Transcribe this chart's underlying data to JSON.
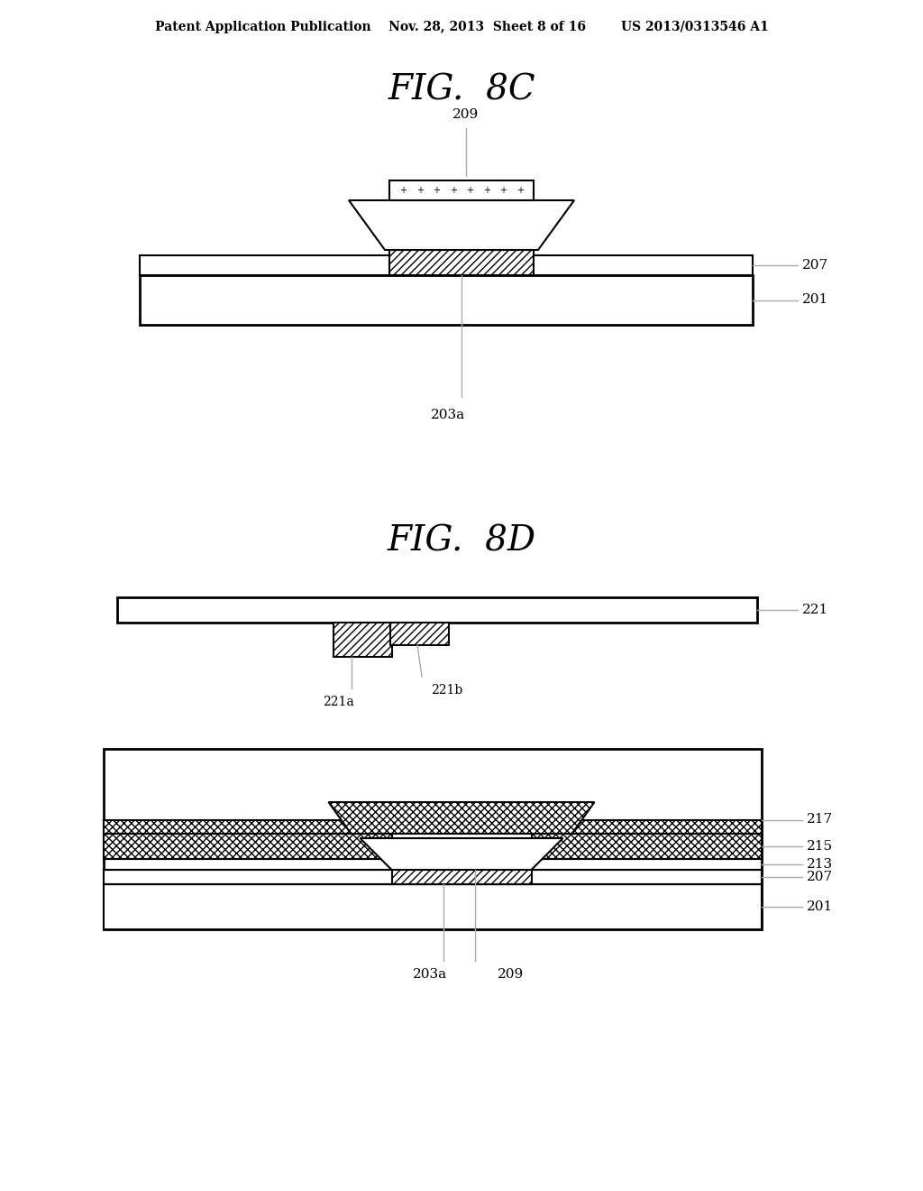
{
  "bg_color": "#ffffff",
  "header_text": "Patent Application Publication    Nov. 28, 2013  Sheet 8 of 16        US 2013/0313546 A1",
  "fig8c_title": "FIG.  8C",
  "fig8d_title": "FIG.  8D",
  "line_color": "#000000",
  "hatch_color": "#000000",
  "label_color": "#000000",
  "leader_color": "#aaaaaa"
}
